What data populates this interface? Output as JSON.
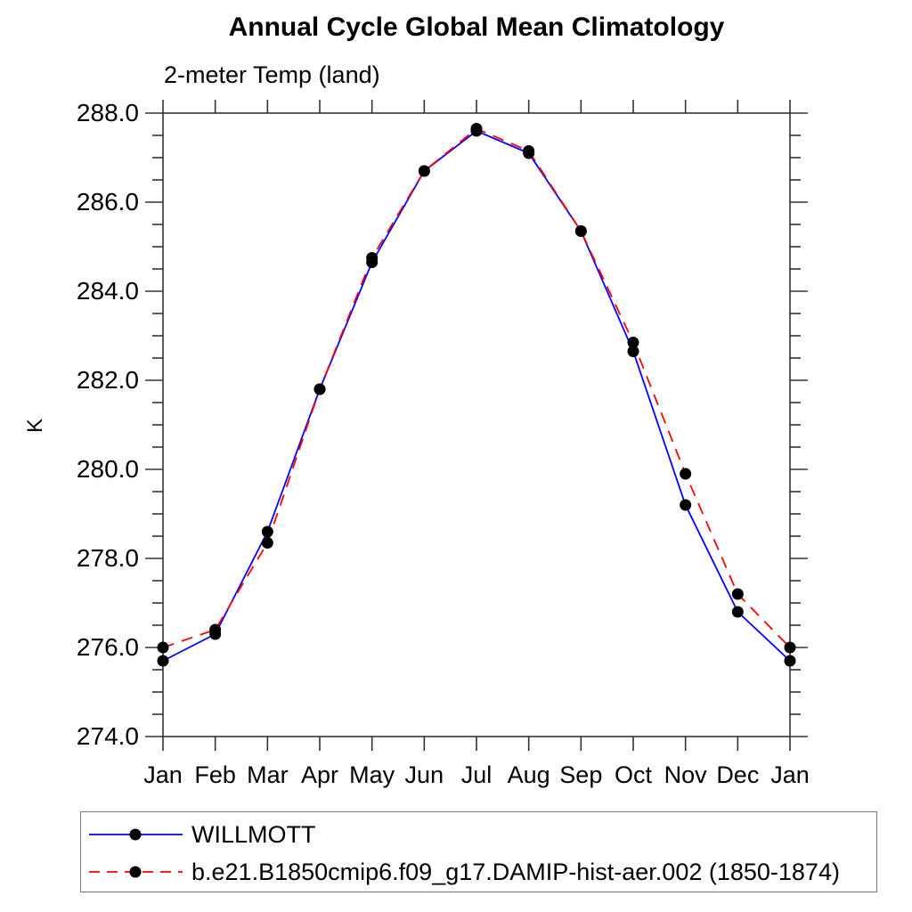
{
  "chart_data": {
    "type": "line",
    "title": "Annual Cycle Global Mean Climatology",
    "subtitle": "2-meter Temp (land)",
    "ylabel": "K",
    "xlabel": "",
    "x_tick_labels": [
      "Jan",
      "Feb",
      "Mar",
      "Apr",
      "May",
      "Jun",
      "Jul",
      "Aug",
      "Sep",
      "Oct",
      "Nov",
      "Dec",
      "Jan"
    ],
    "ylim": [
      274.0,
      288.0
    ],
    "y_major_ticks": [
      274,
      276,
      278,
      280,
      282,
      284,
      286,
      288
    ],
    "y_major_tick_labels": [
      "274.0",
      "276.0",
      "278.0",
      "280.0",
      "282.0",
      "284.0",
      "286.0",
      "288.0"
    ],
    "y_minor_step": 0.5,
    "grid": false,
    "legend_position": "bottom-left-box",
    "axis_color": "#333333",
    "marker_color": "#000000",
    "series": [
      {
        "name": "WILLMOTT",
        "color": "#0000ff",
        "line_style": "solid",
        "marker": "filled-circle",
        "values": [
          275.7,
          276.3,
          278.6,
          281.8,
          284.65,
          286.7,
          287.6,
          287.1,
          285.35,
          282.65,
          279.2,
          276.8,
          275.7
        ]
      },
      {
        "name": "b.e21.B1850cmip6.f09_g17.DAMIP-hist-aer.002 (1850-1874)",
        "color": "#ff0000",
        "line_style": "dashed",
        "marker": "filled-circle",
        "values": [
          276.0,
          276.4,
          278.35,
          281.8,
          284.75,
          286.7,
          287.65,
          287.15,
          285.35,
          282.85,
          279.9,
          277.2,
          276.0
        ]
      }
    ]
  }
}
